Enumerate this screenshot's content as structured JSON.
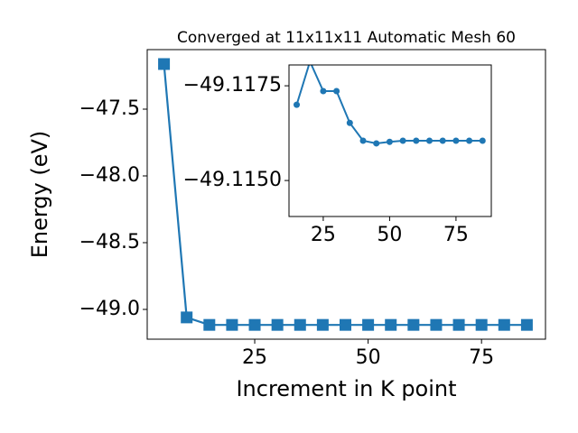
{
  "chart_data": [
    {
      "type": "line",
      "title": "Converged at 11x11x11 Automatic Mesh 60",
      "xlabel": "Increment in K point",
      "ylabel": "Energy (eV)",
      "x": [
        5,
        10,
        15,
        20,
        25,
        30,
        35,
        40,
        45,
        50,
        55,
        60,
        65,
        70,
        75,
        80,
        85
      ],
      "series": [
        {
          "color": "#1f77b4",
          "marker": "square",
          "values": [
            -47.162,
            -49.06,
            -49.116,
            -49.116,
            -49.116,
            -49.116,
            -49.116,
            -49.116,
            -49.116,
            -49.116,
            -49.116,
            -49.116,
            -49.116,
            -49.116,
            -49.116,
            -49.116,
            -49.116
          ]
        }
      ],
      "xlim": [
        1.3,
        89.1
      ],
      "ylim": [
        -49.223,
        -47.054
      ],
      "xticks": [
        25,
        50,
        75
      ],
      "yticks": [
        {
          "value": -49.0,
          "label": "−49.0"
        },
        {
          "value": -48.5,
          "label": "−48.5"
        },
        {
          "value": -48.0,
          "label": "−48.0"
        },
        {
          "value": -47.5,
          "label": "−47.5"
        }
      ]
    },
    {
      "type": "line",
      "x": [
        15,
        20,
        25,
        30,
        35,
        40,
        45,
        50,
        55,
        60,
        65,
        70,
        75,
        80,
        85
      ],
      "series": [
        {
          "color": "#1f77b4",
          "marker": "circle",
          "values": [
            -49.117,
            -49.11814,
            -49.11736,
            -49.11736,
            -49.11652,
            -49.11605,
            -49.11598,
            -49.11602,
            -49.11605,
            -49.11605,
            -49.11605,
            -49.11605,
            -49.11605,
            -49.11605,
            -49.11605
          ]
        }
      ],
      "xlim": [
        12.1,
        88.3
      ],
      "ylim": [
        -49.11405,
        -49.11805
      ],
      "xticks": [
        25,
        50,
        75
      ],
      "yticks": [
        {
          "value": -49.1175,
          "label": "−49.1175"
        },
        {
          "value": -49.115,
          "label": "−49.1150"
        }
      ]
    }
  ]
}
